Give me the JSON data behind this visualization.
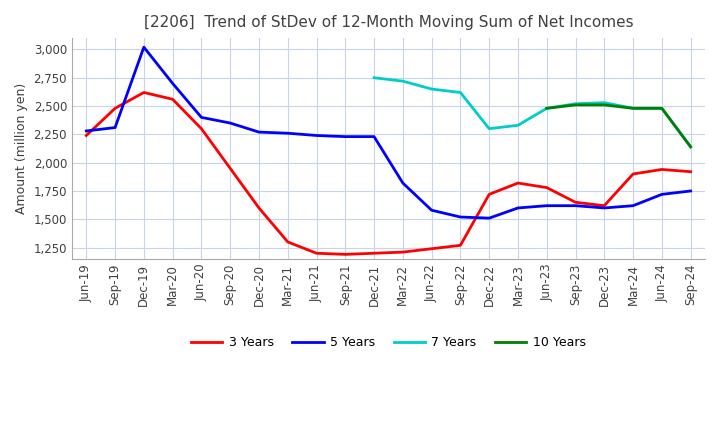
{
  "title": "[2206]  Trend of StDev of 12-Month Moving Sum of Net Incomes",
  "ylabel": "Amount (million yen)",
  "ylim": [
    1150,
    3100
  ],
  "yticks": [
    1250,
    1500,
    1750,
    2000,
    2250,
    2500,
    2750,
    3000
  ],
  "background_color": "#ffffff",
  "grid_color": "#c8d4e8",
  "title_color": "#404040",
  "x_tick_labels": [
    "Jun-19",
    "Sep-19",
    "Dec-19",
    "Mar-20",
    "Jun-20",
    "Sep-20",
    "Dec-20",
    "Mar-21",
    "Jun-21",
    "Sep-21",
    "Dec-21",
    "Mar-22",
    "Jun-22",
    "Sep-22",
    "Dec-22",
    "Mar-23",
    "Jun-23",
    "Sep-23",
    "Dec-23",
    "Mar-24",
    "Jun-24",
    "Sep-24"
  ],
  "series": {
    "3 Years": {
      "color": "#ff0000",
      "dates": [
        "Jun-19",
        "Sep-19",
        "Dec-19",
        "Mar-20",
        "Jun-20",
        "Sep-20",
        "Dec-20",
        "Mar-21",
        "Jun-21",
        "Sep-21",
        "Dec-21",
        "Mar-22",
        "Jun-22",
        "Sep-22",
        "Dec-22",
        "Mar-23",
        "Jun-23",
        "Sep-23",
        "Dec-23",
        "Mar-24",
        "Jun-24",
        "Sep-24"
      ],
      "values": [
        2240,
        2480,
        2620,
        2560,
        2300,
        1950,
        1600,
        1300,
        1200,
        1190,
        1200,
        1210,
        1240,
        1270,
        1720,
        1820,
        1780,
        1650,
        1620,
        1900,
        1940,
        1920
      ]
    },
    "5 Years": {
      "color": "#0000ff",
      "dates": [
        "Jun-19",
        "Sep-19",
        "Dec-19",
        "Mar-20",
        "Jun-20",
        "Sep-20",
        "Dec-20",
        "Mar-21",
        "Jun-21",
        "Sep-21",
        "Dec-21",
        "Mar-22",
        "Jun-22",
        "Sep-22",
        "Dec-22",
        "Mar-23",
        "Jun-23",
        "Sep-23",
        "Dec-23",
        "Mar-24",
        "Jun-24",
        "Sep-24"
      ],
      "values": [
        2280,
        2310,
        3020,
        2700,
        2400,
        2350,
        2270,
        2260,
        2240,
        2230,
        2230,
        1820,
        1580,
        1520,
        1510,
        1600,
        1620,
        1620,
        1600,
        1620,
        1720,
        1750
      ]
    },
    "7 Years": {
      "color": "#00cccc",
      "dates": [
        "Dec-21",
        "Mar-22",
        "Jun-22",
        "Sep-22",
        "Dec-22",
        "Mar-23",
        "Jun-23",
        "Sep-23",
        "Dec-23",
        "Mar-24",
        "Jun-24",
        "Sep-24"
      ],
      "values": [
        2750,
        2720,
        2650,
        2620,
        2300,
        2330,
        2480,
        2520,
        2530,
        2480,
        2480,
        2140
      ]
    },
    "10 Years": {
      "color": "#008000",
      "dates": [
        "Jun-23",
        "Sep-23",
        "Dec-23",
        "Mar-24",
        "Jun-24",
        "Sep-24"
      ],
      "values": [
        2480,
        2510,
        2510,
        2480,
        2480,
        2140
      ]
    }
  }
}
